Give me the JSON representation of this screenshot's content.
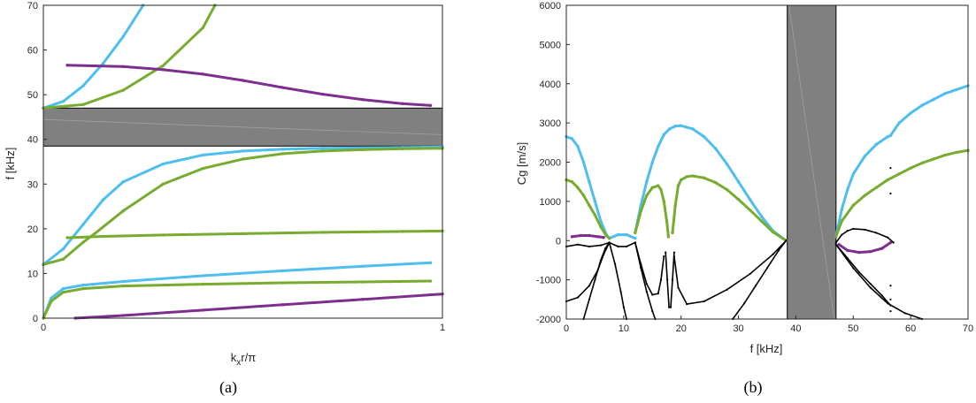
{
  "colors": {
    "cyan": "#4dbeee",
    "green": "#77ac30",
    "purple": "#7e2f8e",
    "black": "#000000",
    "band": "#808080"
  },
  "panels": {
    "a": {
      "caption": "(a)"
    },
    "b": {
      "caption": "(b)"
    }
  },
  "chart_data": [
    {
      "type": "scatter",
      "panel": "a",
      "xlabel": "k_x r/π",
      "xlabel_main": "k",
      "xlabel_sub": "x",
      "xlabel_rest": "r/π",
      "ylabel": "f [kHz]",
      "xlim": [
        0,
        1
      ],
      "ylim": [
        0,
        70
      ],
      "xticks": [
        {
          "v": 0,
          "label": "0"
        },
        {
          "v": 1,
          "label": "1"
        }
      ],
      "yticks": [
        {
          "v": 0,
          "label": "0"
        },
        {
          "v": 10,
          "label": "10"
        },
        {
          "v": 20,
          "label": "20"
        },
        {
          "v": 30,
          "label": "30"
        },
        {
          "v": 40,
          "label": "40"
        },
        {
          "v": 50,
          "label": "50"
        },
        {
          "v": 60,
          "label": "60"
        },
        {
          "v": 70,
          "label": "70"
        }
      ],
      "bandgap": {
        "ymin": 38.5,
        "ymax": 47.0
      },
      "series": [
        {
          "color": "cyan",
          "x": [
            0,
            0.05,
            0.1,
            0.15,
            0.2,
            0.25
          ],
          "y": [
            47.0,
            48.5,
            52.0,
            57.0,
            63.0,
            70.0
          ]
        },
        {
          "color": "green",
          "x": [
            0,
            0.1,
            0.2,
            0.3,
            0.4,
            0.43
          ],
          "y": [
            47.0,
            47.8,
            51.0,
            56.5,
            65.0,
            70.0
          ]
        },
        {
          "color": "purple",
          "x": [
            0.06,
            0.2,
            0.3,
            0.4,
            0.5,
            0.6,
            0.7,
            0.8,
            0.9,
            0.97
          ],
          "y": [
            56.6,
            56.3,
            55.6,
            54.6,
            53.2,
            51.6,
            50.1,
            48.9,
            48.0,
            47.6
          ]
        },
        {
          "color": "cyan",
          "x": [
            0,
            0.05,
            0.1,
            0.15,
            0.2,
            0.3,
            0.4,
            0.5,
            0.6,
            0.7,
            0.8,
            0.9,
            1.0
          ],
          "y": [
            12.0,
            15.5,
            21.0,
            26.5,
            30.5,
            34.5,
            36.5,
            37.4,
            37.8,
            38.0,
            38.1,
            38.2,
            38.3
          ]
        },
        {
          "color": "green",
          "x": [
            0,
            0.05,
            0.1,
            0.13,
            0.2,
            0.3,
            0.4,
            0.5,
            0.6,
            0.7,
            0.8,
            0.9,
            1.0
          ],
          "y": [
            12.0,
            13.2,
            17.0,
            19.0,
            24.0,
            30.0,
            33.5,
            35.6,
            36.8,
            37.4,
            37.7,
            37.9,
            38.0
          ]
        },
        {
          "color": "green",
          "x": [
            0.06,
            0.15,
            0.3,
            0.5,
            0.7,
            0.9,
            1.0
          ],
          "y": [
            18.0,
            18.3,
            18.6,
            18.9,
            19.2,
            19.4,
            19.5
          ]
        },
        {
          "color": "cyan",
          "x": [
            0,
            0.02,
            0.05,
            0.1,
            0.2,
            0.4,
            0.6,
            0.8,
            0.97
          ],
          "y": [
            0,
            4.5,
            6.6,
            7.4,
            8.2,
            9.5,
            10.6,
            11.6,
            12.4
          ]
        },
        {
          "color": "green",
          "x": [
            0,
            0.02,
            0.05,
            0.1,
            0.2,
            0.4,
            0.6,
            0.8,
            0.97
          ],
          "y": [
            0,
            3.8,
            5.8,
            6.6,
            7.2,
            7.6,
            7.9,
            8.1,
            8.3
          ]
        },
        {
          "color": "purple",
          "x": [
            0.08,
            0.2,
            0.4,
            0.6,
            0.8,
            1.0
          ],
          "y": [
            0,
            0.6,
            1.8,
            3.0,
            4.2,
            5.4
          ]
        }
      ]
    },
    {
      "type": "scatter",
      "panel": "b",
      "xlabel": "f [kHz]",
      "ylabel": "Cg [m/s]",
      "xlim": [
        0,
        70
      ],
      "ylim": [
        -2000,
        6000
      ],
      "xticks": [
        {
          "v": 0,
          "label": "0"
        },
        {
          "v": 10,
          "label": "10"
        },
        {
          "v": 20,
          "label": "20"
        },
        {
          "v": 30,
          "label": "30"
        },
        {
          "v": 40,
          "label": "40"
        },
        {
          "v": 50,
          "label": "50"
        },
        {
          "v": 60,
          "label": "60"
        },
        {
          "v": 70,
          "label": "70"
        }
      ],
      "yticks": [
        {
          "v": -2000,
          "label": "-2000"
        },
        {
          "v": -1000,
          "label": "-1000"
        },
        {
          "v": 0,
          "label": "0"
        },
        {
          "v": 1000,
          "label": "1000"
        },
        {
          "v": 2000,
          "label": "2000"
        },
        {
          "v": 3000,
          "label": "3000"
        },
        {
          "v": 4000,
          "label": "4000"
        },
        {
          "v": 5000,
          "label": "5000"
        },
        {
          "v": 6000,
          "label": "6000"
        }
      ],
      "bandgap": {
        "xmin": 38.5,
        "xmax": 47.0
      },
      "series": [
        {
          "color": "cyan",
          "x": [
            0,
            1,
            2,
            3,
            4,
            5,
            6,
            7,
            7.5
          ],
          "y": [
            2650,
            2600,
            2400,
            2000,
            1500,
            1000,
            500,
            150,
            60
          ]
        },
        {
          "color": "cyan",
          "x": [
            7.5,
            9,
            10.5,
            12
          ],
          "y": [
            60,
            150,
            150,
            60
          ]
        },
        {
          "color": "cyan",
          "x": [
            12,
            13,
            14,
            15,
            16,
            17,
            18,
            19,
            20,
            22,
            24,
            26,
            28,
            30,
            32,
            34,
            36,
            38.3
          ],
          "y": [
            200,
            900,
            1500,
            2000,
            2400,
            2700,
            2850,
            2920,
            2930,
            2850,
            2650,
            2350,
            1950,
            1500,
            1050,
            620,
            250,
            0
          ]
        },
        {
          "color": "cyan",
          "x": [
            47,
            48,
            49,
            50,
            52,
            54,
            56,
            56.5,
            58,
            60,
            62,
            64,
            66,
            68,
            70
          ],
          "y": [
            100,
            800,
            1300,
            1700,
            2150,
            2450,
            2650,
            2680,
            3000,
            3250,
            3450,
            3600,
            3750,
            3850,
            3950
          ]
        },
        {
          "color": "green",
          "x": [
            0,
            1,
            2,
            3,
            4,
            5,
            6,
            7,
            7.5
          ],
          "y": [
            1550,
            1500,
            1350,
            1150,
            900,
            650,
            350,
            120,
            60
          ]
        },
        {
          "color": "green",
          "x": [
            12,
            13,
            14,
            15,
            16,
            16.5,
            17,
            17.5,
            17.8
          ],
          "y": [
            200,
            750,
            1150,
            1350,
            1400,
            1300,
            1000,
            500,
            100
          ]
        },
        {
          "color": "green",
          "x": [
            18.5,
            19,
            19.5,
            20,
            21,
            22,
            24,
            26,
            28,
            30,
            32,
            34,
            36,
            38.3
          ],
          "y": [
            200,
            900,
            1400,
            1550,
            1630,
            1650,
            1600,
            1480,
            1300,
            1050,
            780,
            500,
            220,
            0
          ]
        },
        {
          "color": "green",
          "x": [
            47,
            48,
            50,
            52,
            54,
            56,
            58,
            60,
            62,
            64,
            66,
            68,
            70
          ],
          "y": [
            100,
            500,
            900,
            1150,
            1350,
            1550,
            1700,
            1850,
            1980,
            2080,
            2180,
            2250,
            2300
          ]
        },
        {
          "color": "purple",
          "x": [
            1,
            2.5,
            4,
            5.5,
            6.5
          ],
          "y": [
            100,
            130,
            130,
            100,
            80
          ]
        },
        {
          "color": "purple",
          "x": [
            47.5,
            49,
            51,
            53,
            55,
            56.5
          ],
          "y": [
            -100,
            -250,
            -300,
            -280,
            -200,
            -50
          ]
        },
        {
          "color": "black",
          "x": [
            0,
            2,
            4,
            6,
            7.5
          ],
          "y": [
            -150,
            -100,
            -150,
            -120,
            -50
          ]
        },
        {
          "color": "black",
          "x": [
            0,
            2,
            4,
            5.5,
            6.5,
            7.5
          ],
          "y": [
            -1550,
            -1450,
            -1150,
            -750,
            -350,
            -50
          ]
        },
        {
          "color": "black",
          "x": [
            3,
            4,
            5,
            6,
            6.8,
            7.5
          ],
          "y": [
            -2000,
            -1500,
            -1000,
            -500,
            -200,
            -50
          ]
        },
        {
          "color": "black",
          "x": [
            7.5,
            8.5,
            9.5,
            10,
            10.5
          ],
          "y": [
            -50,
            -600,
            -1300,
            -1700,
            -2000
          ]
        },
        {
          "color": "black",
          "x": [
            7.5,
            9,
            10.5,
            12
          ],
          "y": [
            -50,
            -150,
            -150,
            -50
          ]
        },
        {
          "color": "black",
          "x": [
            12,
            13,
            14,
            15,
            16,
            16.5,
            17
          ],
          "y": [
            -50,
            -600,
            -1100,
            -1380,
            -1350,
            -1000,
            -400
          ]
        },
        {
          "color": "black",
          "x": [
            12,
            13,
            14,
            15,
            15.5
          ],
          "y": [
            -50,
            -700,
            -1300,
            -1800,
            -2000
          ]
        },
        {
          "color": "black",
          "x": [
            17.3,
            17.6,
            17.9,
            18.2,
            18.5,
            18.8
          ],
          "y": [
            -300,
            -1000,
            -1700,
            -1700,
            -1000,
            -300
          ]
        },
        {
          "color": "black",
          "x": [
            18.8,
            19.5,
            21,
            24,
            28,
            32,
            36,
            38.3
          ],
          "y": [
            -400,
            -1200,
            -1620,
            -1550,
            -1250,
            -850,
            -350,
            0
          ]
        },
        {
          "color": "black",
          "x": [
            29,
            31,
            33,
            35,
            37,
            38.3
          ],
          "y": [
            -2000,
            -1600,
            -1150,
            -700,
            -250,
            0
          ]
        },
        {
          "color": "black",
          "x": [
            47,
            48,
            49,
            50,
            52,
            54,
            56,
            57
          ],
          "y": [
            -50,
            150,
            250,
            300,
            280,
            200,
            80,
            -50
          ]
        },
        {
          "color": "black",
          "x": [
            47,
            49,
            51,
            53,
            55,
            56.5
          ],
          "y": [
            -100,
            -450,
            -800,
            -1100,
            -1400,
            -1650
          ]
        },
        {
          "color": "black",
          "x": [
            47,
            50,
            53,
            56,
            59,
            62
          ],
          "y": [
            -100,
            -700,
            -1200,
            -1600,
            -1850,
            -2000
          ]
        },
        {
          "color": "black",
          "x": [
            56.5,
            56.5,
            56.5,
            56.5,
            56.5
          ],
          "y": [
            1850,
            1200,
            -1150,
            -1500,
            -1800
          ]
        }
      ]
    }
  ]
}
